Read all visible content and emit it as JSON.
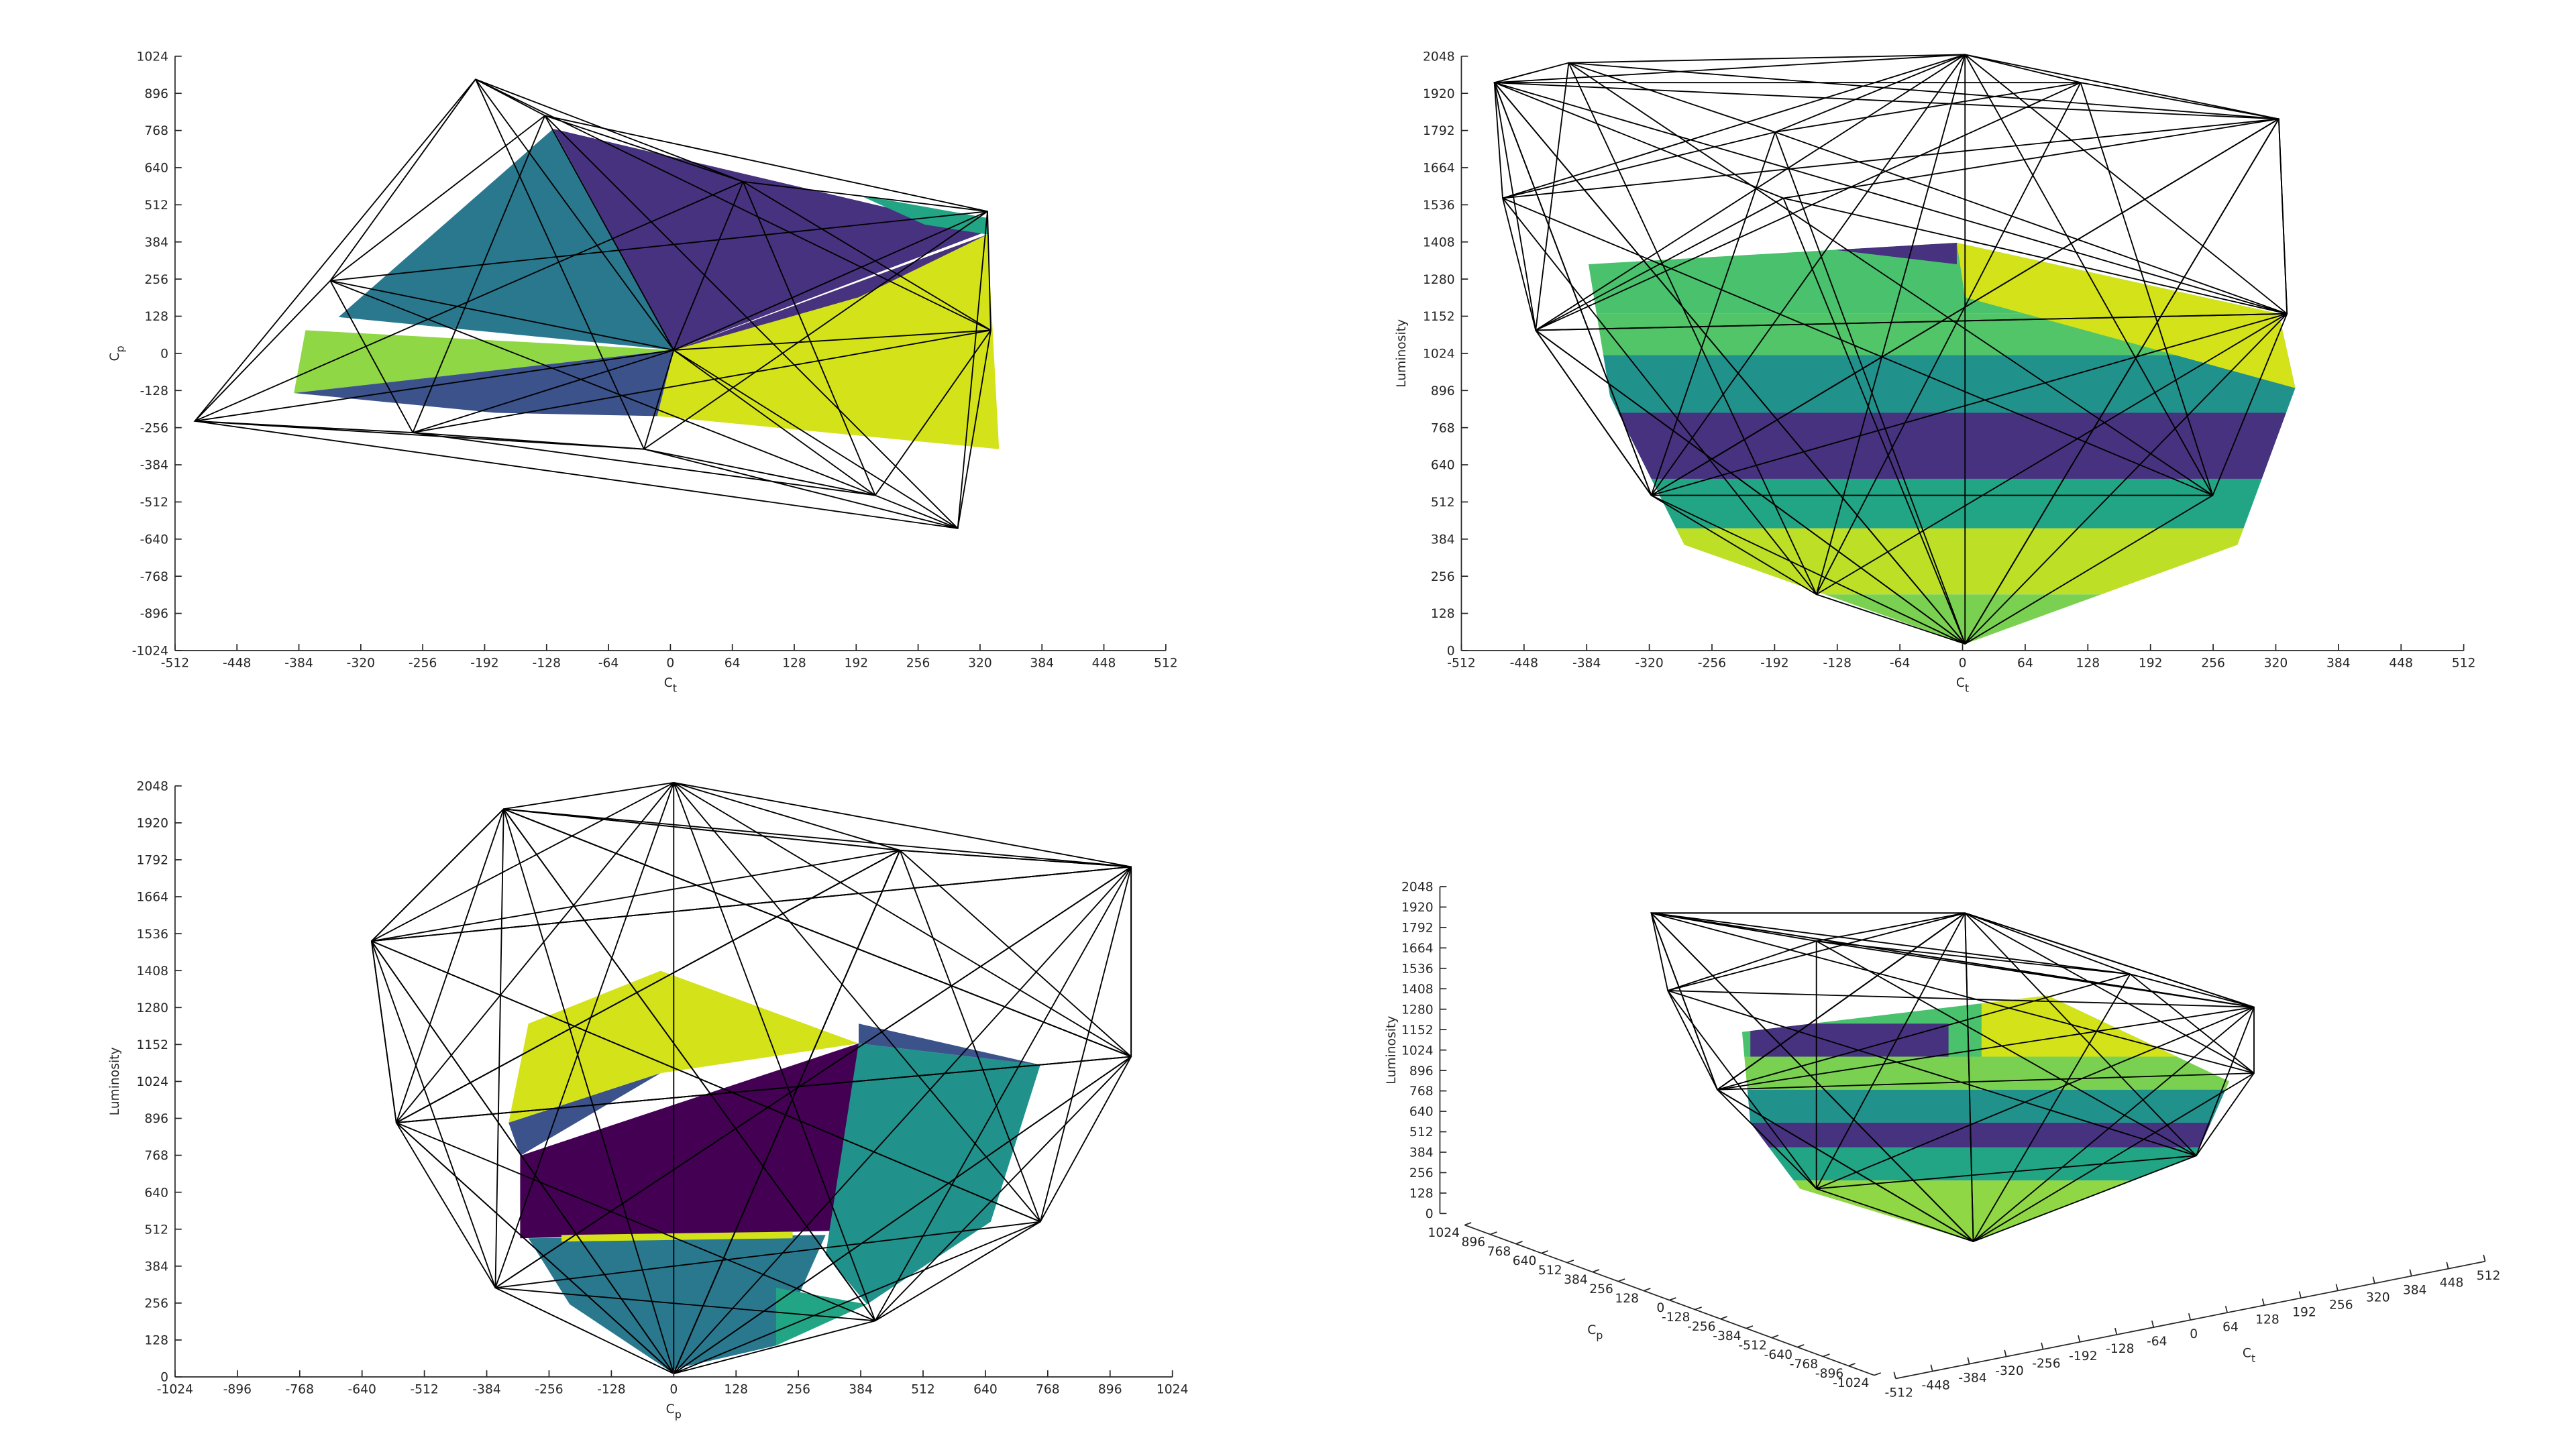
{
  "chart_data": [
    {
      "type": "surface",
      "xlabel": {
        "main": "C",
        "sub": "t"
      },
      "ylabel": {
        "main": "C",
        "sub": "p"
      },
      "xlim": [
        -512,
        512
      ],
      "xticks": [
        -512,
        -448,
        -384,
        -320,
        -256,
        -192,
        -128,
        -64,
        0,
        64,
        128,
        192,
        256,
        320,
        384,
        448,
        512
      ],
      "ylim": [
        -1024,
        1024
      ],
      "yticks": [
        -1024,
        -896,
        -768,
        -640,
        -512,
        -384,
        -256,
        -128,
        0,
        128,
        256,
        384,
        512,
        640,
        768,
        896,
        1024
      ]
    },
    {
      "type": "surface",
      "xlabel": {
        "main": "C",
        "sub": "t"
      },
      "ylabel": {
        "main": "Luminosity"
      },
      "xlim": [
        -512,
        512
      ],
      "xticks": [
        -512,
        -448,
        -384,
        -320,
        -256,
        -192,
        -128,
        -64,
        0,
        64,
        128,
        192,
        256,
        320,
        384,
        448,
        512
      ],
      "ylim": [
        0,
        2048
      ],
      "yticks": [
        0,
        128,
        256,
        384,
        512,
        640,
        768,
        896,
        1024,
        1152,
        1280,
        1408,
        1536,
        1664,
        1792,
        1920,
        2048
      ]
    },
    {
      "type": "surface",
      "xlabel": {
        "main": "C",
        "sub": "p"
      },
      "ylabel": {
        "main": "Luminosity"
      },
      "xlim": [
        -1024,
        1024
      ],
      "xticks": [
        -1024,
        -896,
        -768,
        -640,
        -512,
        -384,
        -256,
        -128,
        0,
        128,
        256,
        384,
        512,
        640,
        768,
        896,
        1024
      ],
      "ylim": [
        0,
        2048
      ],
      "yticks": [
        0,
        128,
        256,
        384,
        512,
        640,
        768,
        896,
        1024,
        1152,
        1280,
        1408,
        1536,
        1664,
        1792,
        1920,
        2048
      ]
    },
    {
      "type": "surface3d",
      "xlabel": {
        "main": "C",
        "sub": "p"
      },
      "ylabel": {
        "main": "C",
        "sub": "t"
      },
      "zlabel": {
        "main": "Luminosity"
      },
      "xlim": [
        -1024,
        1024
      ],
      "xticks": [
        -1024,
        -896,
        -768,
        -640,
        -512,
        -384,
        -256,
        -128,
        0,
        128,
        256,
        384,
        512,
        640,
        768,
        896,
        1024
      ],
      "ylim": [
        -512,
        512
      ],
      "yticks": [
        -512,
        -448,
        -384,
        -320,
        -256,
        -192,
        -128,
        -64,
        0,
        64,
        128,
        192,
        256,
        320,
        384,
        448,
        512
      ],
      "zlim": [
        0,
        2048
      ],
      "zticks": [
        0,
        128,
        256,
        384,
        512,
        640,
        768,
        896,
        1024,
        1152,
        1280,
        1408,
        1536,
        1664,
        1792,
        1920,
        2048
      ]
    }
  ]
}
